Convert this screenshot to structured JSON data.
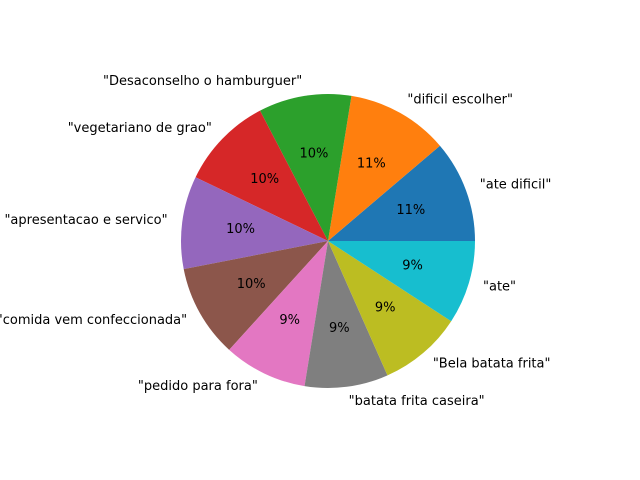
{
  "chart_data": {
    "type": "pie",
    "start_angle_deg": 0,
    "direction": "counterclockwise",
    "slices": [
      {
        "label": "\"ate dificil\"",
        "value": 11,
        "pct_label": "11%",
        "color": "#1f77b4"
      },
      {
        "label": "\"dificil escolher\"",
        "value": 11,
        "pct_label": "11%",
        "color": "#ff7f0e"
      },
      {
        "label": "\"Desaconselho o hamburguer\"",
        "value": 10,
        "pct_label": "10%",
        "color": "#2ca02c"
      },
      {
        "label": "\"vegetariano de grao\"",
        "value": 10,
        "pct_label": "10%",
        "color": "#d62728"
      },
      {
        "label": "\"apresentacao e servico\"",
        "value": 10,
        "pct_label": "10%",
        "color": "#9467bd"
      },
      {
        "label": "\"comida vem confeccionada\"",
        "value": 10,
        "pct_label": "10%",
        "color": "#8c564b"
      },
      {
        "label": "\"pedido para fora\"",
        "value": 9,
        "pct_label": "9%",
        "color": "#e377c2"
      },
      {
        "label": "\"batata frita caseira\"",
        "value": 9,
        "pct_label": "9%",
        "color": "#7f7f7f"
      },
      {
        "label": "\"Bela batata frita\"",
        "value": 9,
        "pct_label": "9%",
        "color": "#bcbd22"
      },
      {
        "label": "\"ate\"",
        "value": 9,
        "pct_label": "9%",
        "color": "#17becf"
      }
    ]
  }
}
